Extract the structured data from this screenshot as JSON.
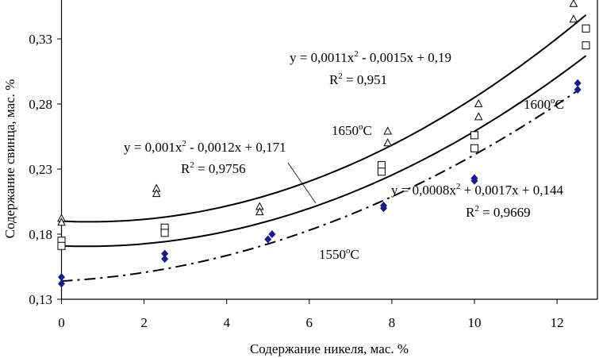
{
  "chart_data": {
    "type": "scatter",
    "title": "",
    "xlabel": "Содержание никеля, мас. %",
    "ylabel": "Содержание свинца, мас. %",
    "xlim": [
      0,
      13
    ],
    "ylim": [
      0.13,
      0.36
    ],
    "xticks": [
      "0",
      "2",
      "4",
      "6",
      "8",
      "10",
      "12"
    ],
    "xtick_values": [
      0,
      2,
      4,
      6,
      8,
      10,
      12
    ],
    "yticks": [
      "0,13",
      "0,18",
      "0,23",
      "0,28",
      "0,33"
    ],
    "ytick_values": [
      0.13,
      0.18,
      0.23,
      0.28,
      0.33
    ],
    "grid": false,
    "series": [
      {
        "name": "1650°C",
        "marker": "triangle-open",
        "color": "#000000",
        "points": [
          [
            0,
            0.192
          ],
          [
            0,
            0.189
          ],
          [
            2.3,
            0.215
          ],
          [
            2.3,
            0.211
          ],
          [
            4.8,
            0.201
          ],
          [
            4.8,
            0.197
          ],
          [
            7.9,
            0.259
          ],
          [
            7.9,
            0.25
          ],
          [
            10.1,
            0.28
          ],
          [
            10.1,
            0.27
          ],
          [
            12.4,
            0.357
          ],
          [
            12.4,
            0.345
          ]
        ],
        "trend": {
          "coef": [
            0.0011,
            -0.0015,
            0.19
          ],
          "style": "solid",
          "x_range": [
            0,
            12.7
          ]
        }
      },
      {
        "name": "1600°C",
        "marker": "square-open",
        "color": "#000000",
        "points": [
          [
            0,
            0.175
          ],
          [
            0,
            0.171
          ],
          [
            2.5,
            0.185
          ],
          [
            2.5,
            0.181
          ],
          [
            7.75,
            0.233
          ],
          [
            7.75,
            0.228
          ],
          [
            10,
            0.256
          ],
          [
            10,
            0.246
          ],
          [
            12.7,
            0.338
          ],
          [
            12.7,
            0.325
          ]
        ],
        "trend": {
          "coef": [
            0.001,
            -0.0012,
            0.171
          ],
          "style": "solid",
          "x_range": [
            0,
            12.7
          ]
        }
      },
      {
        "name": "1550°C",
        "marker": "diamond-filled",
        "color": "#1a1a8c",
        "points": [
          [
            0,
            0.147
          ],
          [
            0,
            0.142
          ],
          [
            2.5,
            0.165
          ],
          [
            2.5,
            0.161
          ],
          [
            5,
            0.176
          ],
          [
            5.1,
            0.18
          ],
          [
            7.8,
            0.202
          ],
          [
            7.8,
            0.2
          ],
          [
            10,
            0.223
          ],
          [
            10,
            0.221
          ],
          [
            12.5,
            0.296
          ],
          [
            12.5,
            0.291
          ]
        ],
        "trend": {
          "coef": [
            0.0008,
            0.0017,
            0.144
          ],
          "style": "dashdot",
          "x_range": [
            0,
            12.5
          ]
        }
      }
    ],
    "annotations": {
      "eq1650": {
        "a": "y = 0,0011x",
        "sup": "2",
        "b": " - 0,0015x + 0,19",
        "r_a": "R",
        "r_sup": "2",
        "r_b": " = 0,951"
      },
      "eq1600": {
        "a": "y = 0,001x",
        "sup": "2",
        "b": " - 0,0012x + 0,171",
        "r_a": "R",
        "r_sup": "2",
        "r_b": " = 0,9756"
      },
      "eq1550": {
        "a": "y = 0,0008x",
        "sup": "2",
        "b": " + 0,0017x + 0,144",
        "r_a": "R",
        "r_sup": "2",
        "r_b": " = 0,9669"
      },
      "label1650": {
        "a": "1650",
        "sup": "o",
        "b": "C"
      },
      "label1600": {
        "a": "1600",
        "sup": "o",
        "b": "C"
      },
      "label1550": {
        "a": "1550",
        "sup": "o",
        "b": "C"
      }
    }
  }
}
